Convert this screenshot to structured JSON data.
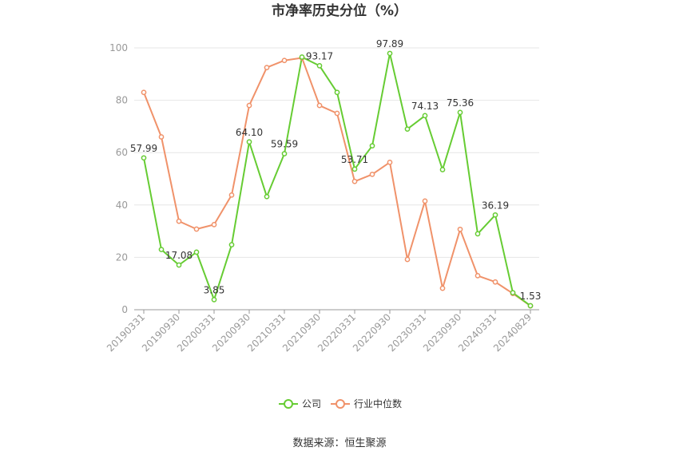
{
  "chart_data": {
    "type": "line",
    "title": "市净率历史分位（%）",
    "source": "数据来源：恒生聚源",
    "ylim": [
      0,
      100
    ],
    "yticks": [
      0,
      20,
      40,
      60,
      80,
      100
    ],
    "grid": true,
    "legend_position": "bottom",
    "x": [
      "20190331",
      "20190630",
      "20190930",
      "20191231",
      "20200331",
      "20200630",
      "20200930",
      "20201231",
      "20210331",
      "20210630",
      "20210930",
      "20211231",
      "20220331",
      "20220630",
      "20220930",
      "20221231",
      "20230331",
      "20230630",
      "20230930",
      "20231231",
      "20240331",
      "20240630",
      "20240829"
    ],
    "xtick_labels": [
      "20190331",
      "20190930",
      "20200331",
      "20200930",
      "20210331",
      "20210930",
      "20220331",
      "20220930",
      "20230331",
      "20230930",
      "20240331",
      "20240829"
    ],
    "series": [
      {
        "name": "公司",
        "color": "#66cc33",
        "values": [
          57.99,
          23.0,
          17.08,
          22.0,
          3.85,
          24.8,
          64.1,
          43.2,
          59.59,
          96.5,
          93.17,
          83.0,
          53.71,
          62.6,
          97.89,
          69.0,
          74.13,
          53.5,
          75.36,
          29.0,
          36.19,
          6.5,
          1.53
        ],
        "labels": {
          "0": "57.99",
          "2": "17.08",
          "4": "3.85",
          "6": "64.10",
          "8": "59.59",
          "10": "93.17",
          "12": "53.71",
          "14": "97.89",
          "16": "74.13",
          "18": "75.36",
          "20": "36.19",
          "22": "1.53"
        }
      },
      {
        "name": "行业中位数",
        "color": "#f0926a",
        "values": [
          83.0,
          66.0,
          33.8,
          30.8,
          32.5,
          43.8,
          78.0,
          92.5,
          95.2,
          96.2,
          78.0,
          75.0,
          49.0,
          51.7,
          56.3,
          19.2,
          41.5,
          8.2,
          30.7,
          13.0,
          10.6,
          6.2,
          1.5
        ]
      }
    ]
  }
}
